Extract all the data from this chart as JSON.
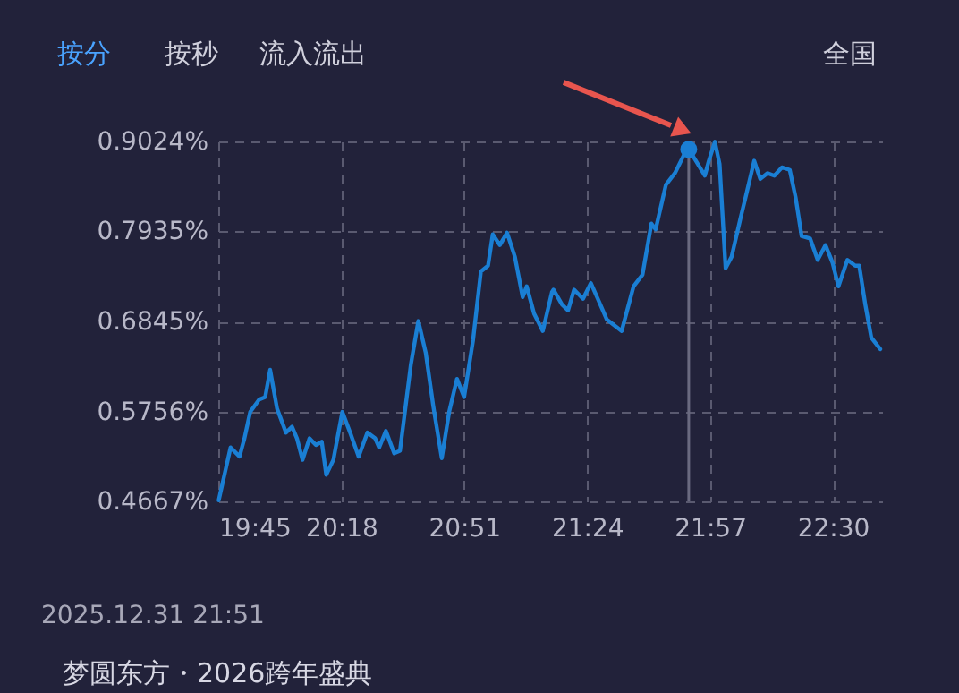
{
  "chart_data": {
    "type": "line",
    "x": [
      19.752,
      19.805,
      19.845,
      19.867,
      19.893,
      19.933,
      19.96,
      19.982,
      20.013,
      20.053,
      20.08,
      20.102,
      20.127,
      20.158,
      20.187,
      20.213,
      20.233,
      20.265,
      20.305,
      20.34,
      20.378,
      20.417,
      20.452,
      20.47,
      20.5,
      20.537,
      20.563,
      20.612,
      20.645,
      20.678,
      20.712,
      20.75,
      20.783,
      20.818,
      20.85,
      20.89,
      20.925,
      20.957,
      20.978,
      21.01,
      21.042,
      21.077,
      21.112,
      21.13,
      21.163,
      21.202,
      21.243,
      21.25,
      21.288,
      21.315,
      21.342,
      21.382,
      21.417,
      21.448,
      21.488,
      21.555,
      21.608,
      21.648,
      21.688,
      21.707,
      21.753,
      21.793,
      21.833,
      21.855,
      21.887,
      21.927,
      21.945,
      21.972,
      21.993,
      22.02,
      22.047,
      22.087,
      22.113,
      22.148,
      22.175,
      22.207,
      22.238,
      22.272,
      22.307,
      22.333,
      22.36,
      22.398,
      22.432,
      22.467,
      22.498,
      22.525,
      22.565,
      22.6,
      22.618,
      22.645,
      22.672,
      22.712
    ],
    "series": [
      {
        "color": "#1a7fd4",
        "values": [
          0.468,
          0.532,
          0.521,
          0.543,
          0.575,
          0.59,
          0.593,
          0.626,
          0.579,
          0.55,
          0.557,
          0.543,
          0.517,
          0.543,
          0.535,
          0.539,
          0.499,
          0.517,
          0.575,
          0.55,
          0.521,
          0.55,
          0.543,
          0.532,
          0.552,
          0.525,
          0.528,
          0.633,
          0.685,
          0.647,
          0.582,
          0.519,
          0.575,
          0.615,
          0.593,
          0.662,
          0.745,
          0.752,
          0.79,
          0.777,
          0.792,
          0.763,
          0.714,
          0.727,
          0.694,
          0.673,
          0.72,
          0.723,
          0.705,
          0.698,
          0.723,
          0.712,
          0.731,
          0.712,
          0.687,
          0.673,
          0.727,
          0.741,
          0.803,
          0.796,
          0.85,
          0.864,
          0.886,
          0.893,
          0.879,
          0.861,
          0.879,
          0.902,
          0.875,
          0.749,
          0.763,
          0.81,
          0.839,
          0.879,
          0.857,
          0.864,
          0.861,
          0.871,
          0.868,
          0.835,
          0.788,
          0.785,
          0.759,
          0.777,
          0.756,
          0.727,
          0.759,
          0.752,
          0.752,
          0.705,
          0.665,
          0.651
        ]
      },
      {
        "type": "scatter",
        "color": "#1a7fd4",
        "marker": "circle",
        "x": [
          21.855
        ],
        "values": [
          0.893
        ]
      }
    ],
    "xlim": [
      19.75,
      22.72
    ],
    "ylim": [
      0.4667,
      0.9024
    ],
    "xticks": [
      {
        "value": 19.75,
        "label": "19:45"
      },
      {
        "value": 20.3,
        "label": "20:18"
      },
      {
        "value": 20.85,
        "label": "20:51"
      },
      {
        "value": 21.4,
        "label": "21:24"
      },
      {
        "value": 21.95,
        "label": "21:57"
      },
      {
        "value": 22.5,
        "label": "22:30"
      }
    ],
    "yticks": [
      {
        "value": 0.4667,
        "label": "0.4667%"
      },
      {
        "value": 0.5756,
        "label": "0.5756%"
      },
      {
        "value": 0.6845,
        "label": "0.6845%"
      },
      {
        "value": 0.7935,
        "label": "0.7935%"
      },
      {
        "value": 0.9024,
        "label": "0.9024%"
      }
    ],
    "grid": true,
    "marker": "none",
    "line_style": "solid",
    "ref_lines": [
      {
        "axis": "x",
        "value": 21.855,
        "color": "#6a6a80"
      }
    ],
    "annotations": [
      "按分",
      "按秒",
      "流入流出",
      "全国",
      "2025.12.31 21:51",
      "梦圆东方・2026跨年盛典"
    ]
  }
}
